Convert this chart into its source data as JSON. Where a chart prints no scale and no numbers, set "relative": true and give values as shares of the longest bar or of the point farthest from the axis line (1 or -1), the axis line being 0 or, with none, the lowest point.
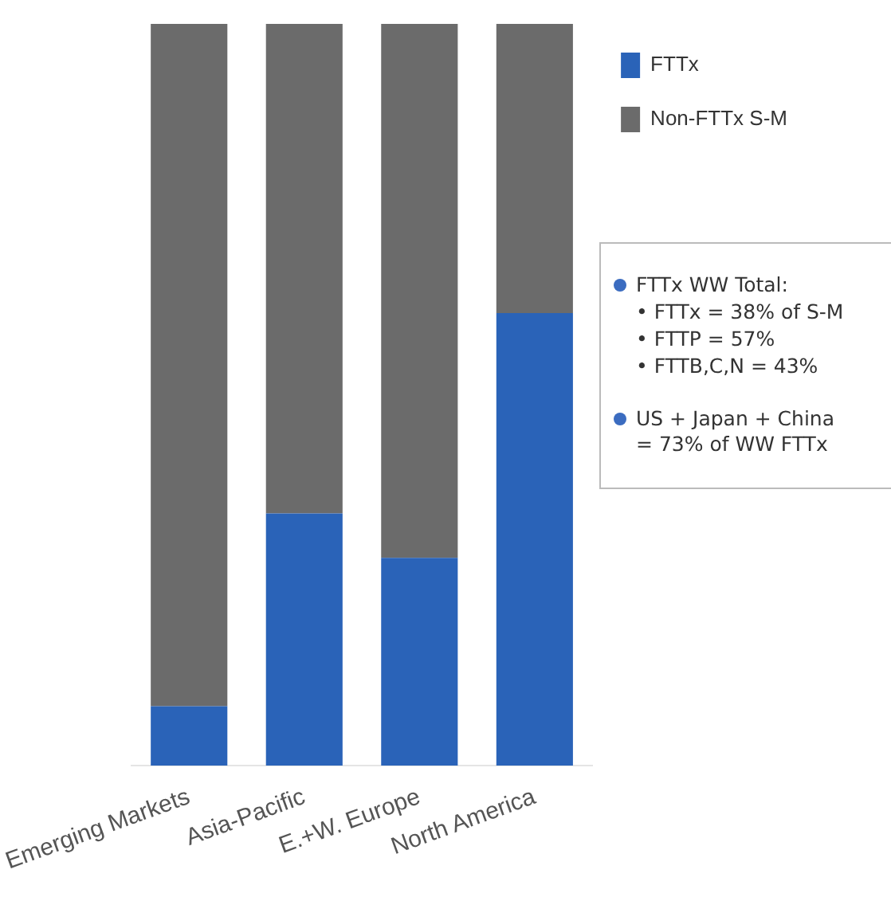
{
  "chart_data": {
    "type": "bar",
    "stacked": true,
    "relative": true,
    "categories": [
      "Emerging Markets",
      "Asia-Pacific",
      "E.+W. Europe",
      "North America"
    ],
    "series": [
      {
        "name": "FTTx",
        "color": "#2a63b8",
        "values": [
          0.08,
          0.34,
          0.28,
          0.61
        ]
      },
      {
        "name": "Non-FTTx S-M",
        "color": "#6b6b6b",
        "values": [
          0.92,
          0.66,
          0.72,
          0.39
        ]
      }
    ],
    "legend": "top right",
    "grid": false,
    "annotations": [
      "FTTx WW Total:\n• FTTx = 38% of S-M\n• FTTP = 57%\n• FTTB,C,N = 43%",
      "US + Japan + China\n= 73% of WW FTTx"
    ]
  }
}
